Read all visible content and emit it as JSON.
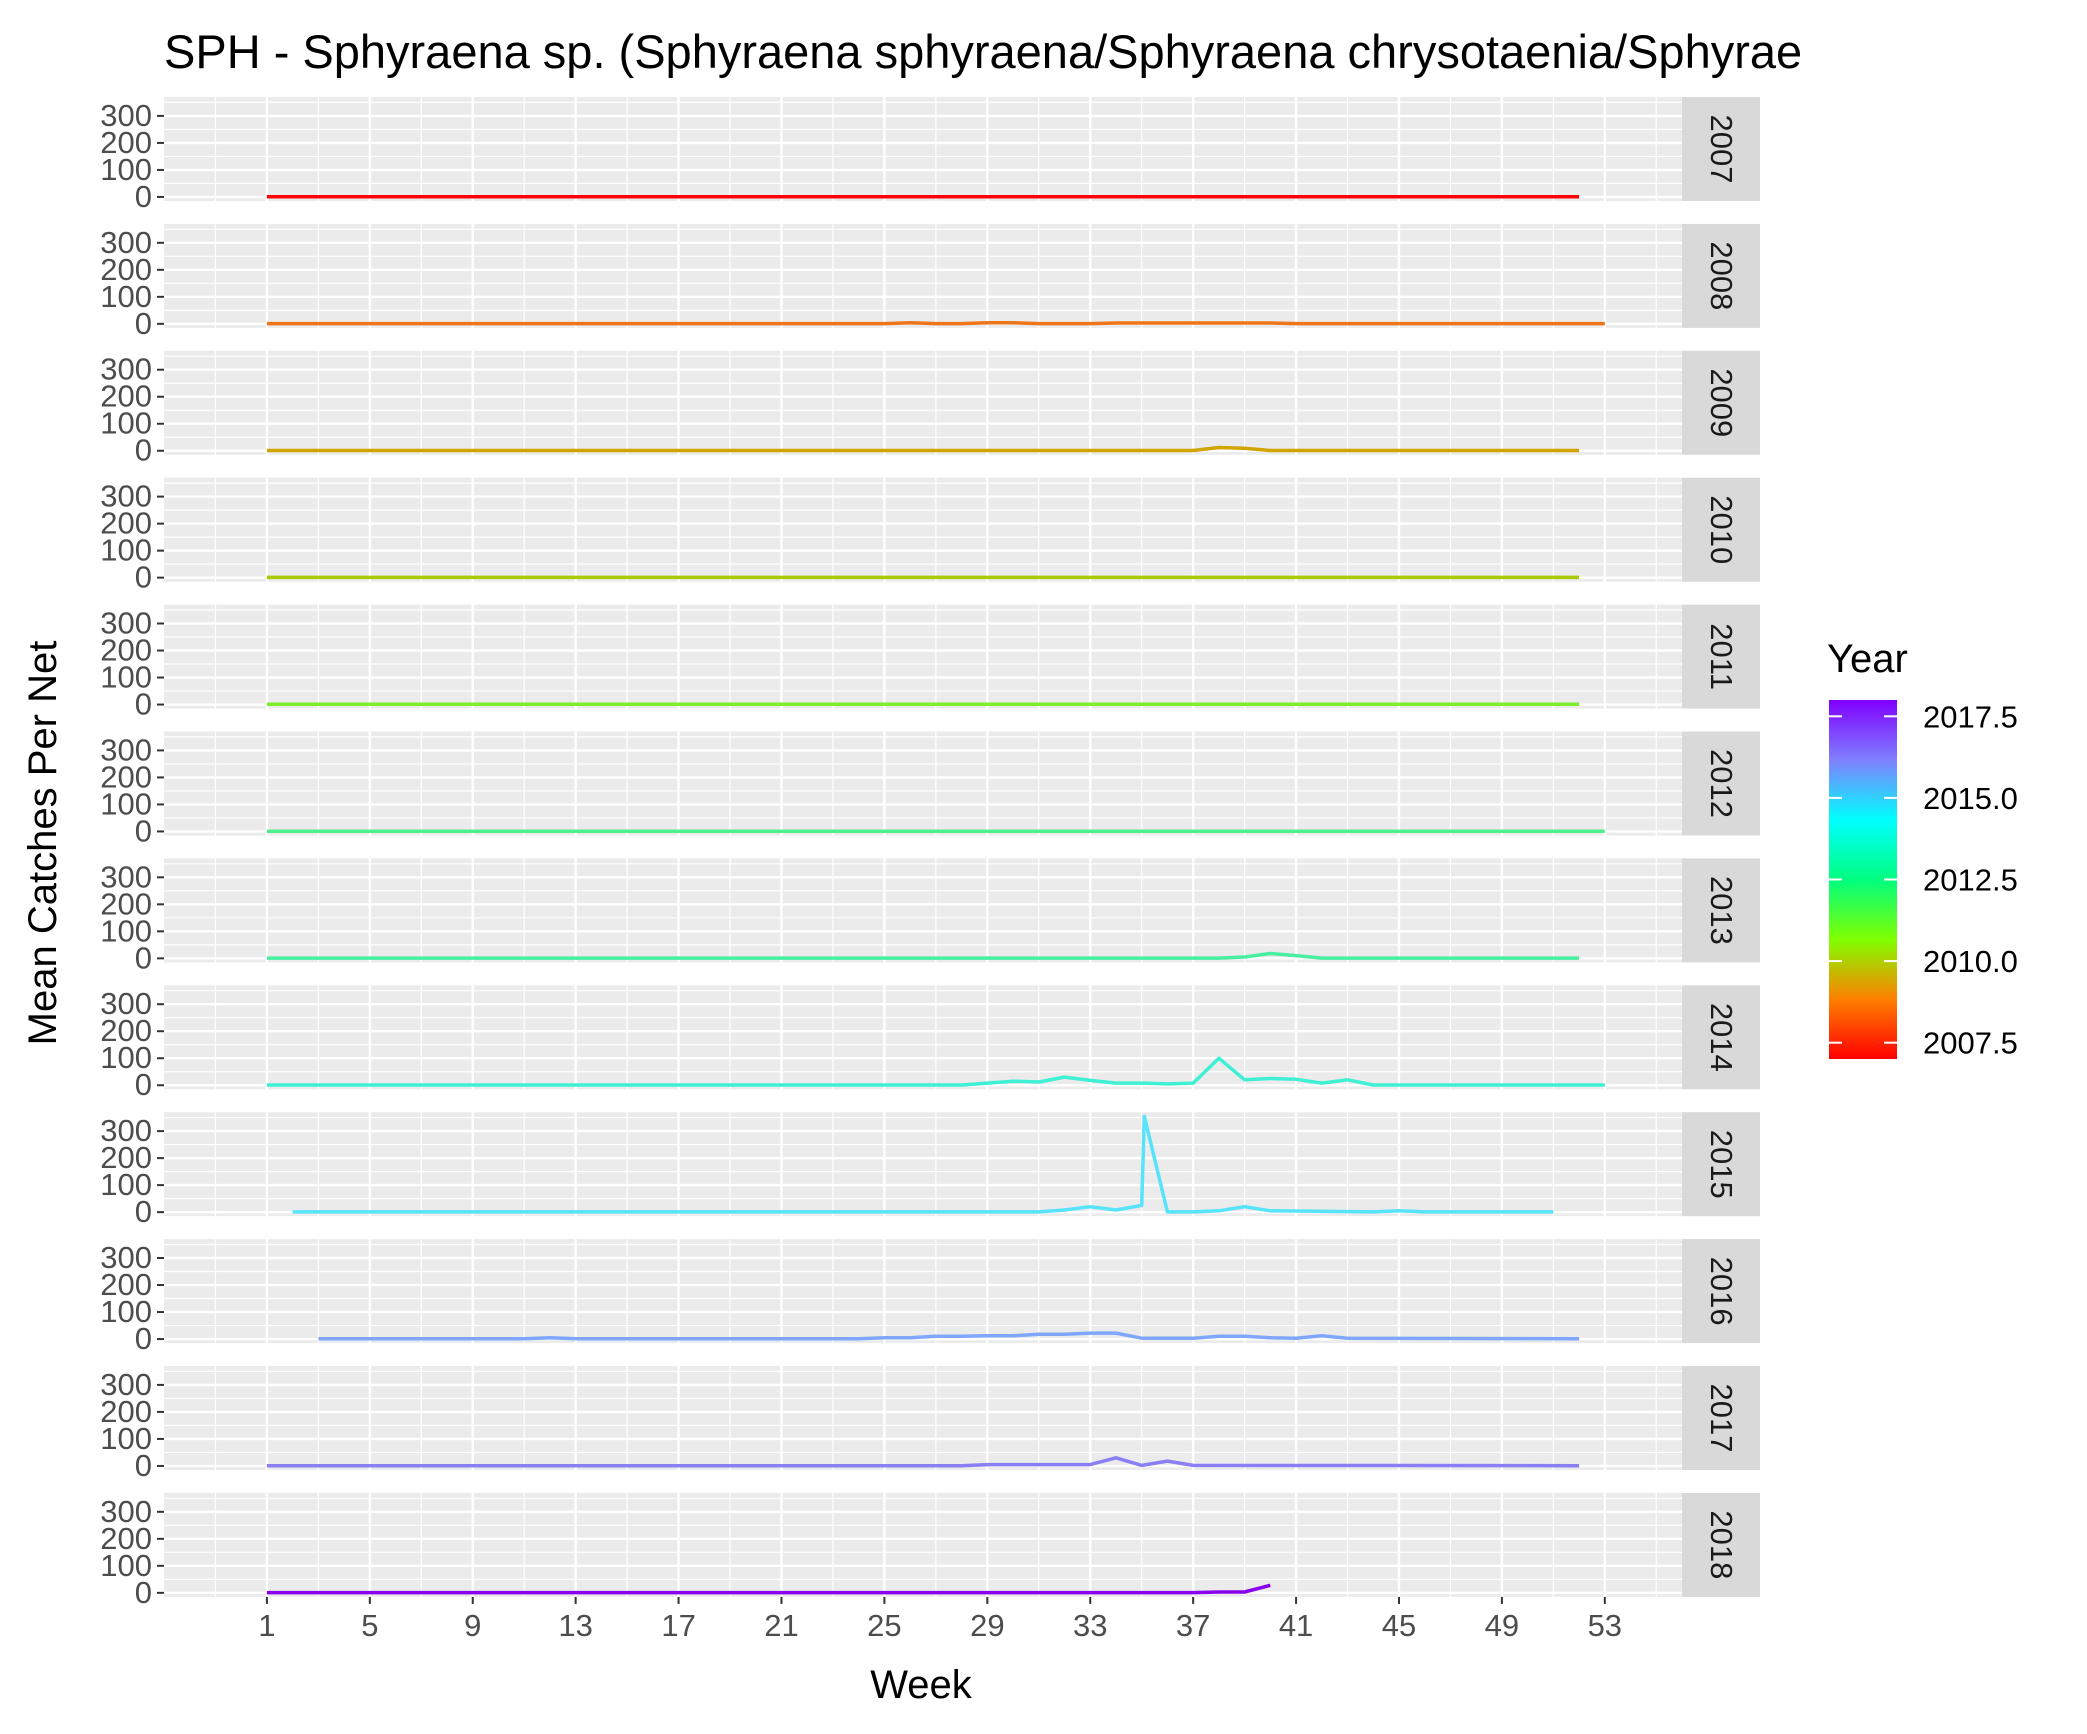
{
  "chart_data": {
    "type": "line",
    "title": "SPH - Sphyraena sp. (Sphyraena sphyraena/Sphyraena chrysotaenia/Sphyrae",
    "xlabel": "Week",
    "ylabel": "Mean Catches Per Net",
    "xlim": [
      -3,
      56
    ],
    "ylim": [
      -15,
      370
    ],
    "x_ticks": [
      1,
      5,
      9,
      13,
      17,
      21,
      25,
      29,
      33,
      37,
      41,
      45,
      49,
      53
    ],
    "y_ticks": [
      0,
      100,
      200,
      300
    ],
    "grid": true,
    "facet": "rows by year",
    "legend": {
      "title": "Year",
      "position": "right",
      "type": "colorbar",
      "range": [
        2007,
        2018
      ],
      "labels": [
        "2017.5",
        "2015.0",
        "2012.5",
        "2010.0",
        "2007.5"
      ],
      "label_values": [
        2017.5,
        2015.0,
        2012.5,
        2010.0,
        2007.5
      ],
      "colors": [
        "#ff0000",
        "#ff8000",
        "#80ff00",
        "#00ff80",
        "#00ffff",
        "#8080ff",
        "#8000ff"
      ]
    },
    "series": [
      {
        "name": "2007",
        "color": "#ff0000",
        "x": [
          1,
          52
        ],
        "y": [
          1,
          1
        ]
      },
      {
        "name": "2008",
        "color": "#ee7518",
        "x": [
          1,
          25,
          26,
          27,
          28,
          29,
          30,
          31,
          33,
          34,
          35,
          39,
          40,
          41,
          53
        ],
        "y": [
          1,
          1,
          4,
          1,
          1,
          4,
          4,
          1,
          1,
          3,
          3,
          3,
          3,
          1,
          1
        ]
      },
      {
        "name": "2009",
        "color": "#d1a400",
        "x": [
          1,
          36,
          37,
          38,
          39,
          40,
          52
        ],
        "y": [
          1,
          1,
          1,
          12,
          9,
          1,
          1
        ]
      },
      {
        "name": "2010",
        "color": "#a8cc00",
        "x": [
          1,
          52
        ],
        "y": [
          1,
          1
        ]
      },
      {
        "name": "2011",
        "color": "#7cee2c",
        "x": [
          1,
          52
        ],
        "y": [
          1,
          1
        ]
      },
      {
        "name": "2012",
        "color": "#4df08a",
        "x": [
          1,
          53
        ],
        "y": [
          1,
          1
        ]
      },
      {
        "name": "2013",
        "color": "#49efa0",
        "x": [
          1,
          38,
          39,
          40,
          41,
          42,
          52
        ],
        "y": [
          1,
          1,
          5,
          18,
          10,
          1,
          1
        ]
      },
      {
        "name": "2014",
        "color": "#3ff0d4",
        "x": [
          1,
          28,
          29,
          30,
          31,
          32,
          33,
          34,
          35,
          36,
          37,
          38,
          39,
          40,
          41,
          42,
          43,
          44,
          45,
          53
        ],
        "y": [
          1,
          1,
          8,
          15,
          12,
          30,
          18,
          8,
          8,
          5,
          8,
          100,
          20,
          25,
          22,
          8,
          20,
          1,
          1,
          1
        ]
      },
      {
        "name": "2015",
        "color": "#56e3fb",
        "x": [
          2,
          31,
          32,
          33,
          34,
          35,
          35.1,
          36,
          37,
          38,
          39,
          40,
          44,
          45,
          46,
          51
        ],
        "y": [
          1,
          1,
          8,
          20,
          8,
          25,
          355,
          1,
          1,
          5,
          20,
          5,
          1,
          5,
          1,
          1
        ]
      },
      {
        "name": "2016",
        "color": "#7fa7ff",
        "x": [
          3,
          11,
          12,
          13,
          24,
          25,
          26,
          27,
          28,
          29,
          30,
          31,
          32,
          33,
          34,
          35,
          37,
          38,
          39,
          40,
          41,
          42,
          43,
          52
        ],
        "y": [
          1,
          1,
          5,
          1,
          1,
          5,
          5,
          10,
          10,
          12,
          12,
          18,
          18,
          22,
          22,
          3,
          3,
          10,
          10,
          5,
          3,
          12,
          3,
          1
        ]
      },
      {
        "name": "2017",
        "color": "#8a7ff5",
        "x": [
          1,
          28,
          29,
          33,
          34,
          35,
          36,
          37,
          52
        ],
        "y": [
          1,
          1,
          5,
          5,
          30,
          2,
          18,
          2,
          1
        ]
      },
      {
        "name": "2018",
        "color": "#8800ee",
        "x": [
          1,
          37,
          38,
          39,
          40
        ],
        "y": [
          1,
          1,
          3,
          3,
          28
        ]
      }
    ]
  }
}
